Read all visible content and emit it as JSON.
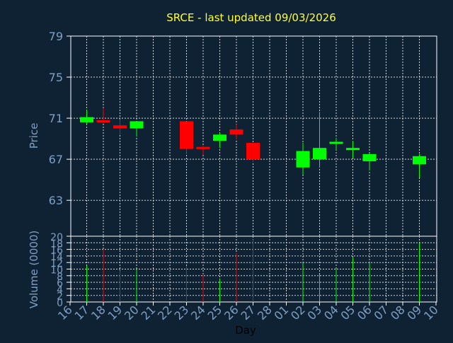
{
  "chart_data": {
    "type": "candlestick",
    "title": "SRCE - last updated 09/03/2026",
    "xlabel": "Day",
    "ylabel_price": "Price",
    "ylabel_volume": "Volume (0000)",
    "x_ticks": [
      "16",
      "17",
      "18",
      "19",
      "20",
      "21",
      "22",
      "23",
      "24",
      "25",
      "26",
      "27",
      "28",
      "01",
      "02",
      "03",
      "04",
      "05",
      "06",
      "07",
      "08",
      "09",
      "10"
    ],
    "price_ylim": [
      59.5,
      79
    ],
    "price_ticks": [
      79,
      75,
      71,
      67,
      63
    ],
    "volume_ylim": [
      0,
      20
    ],
    "volume_ticks": [
      20,
      18,
      16,
      14,
      12,
      10,
      8,
      6,
      4,
      2,
      0
    ],
    "up_color": "#00ff00",
    "down_color": "#ff0000",
    "grid": true,
    "candles": [
      {
        "day": "17",
        "open": 70.6,
        "high": 71.8,
        "low": 70.4,
        "close": 71.1,
        "volume": 11.0
      },
      {
        "day": "18",
        "open": 70.8,
        "high": 72.0,
        "low": 70.5,
        "close": 70.6,
        "volume": 16.0
      },
      {
        "day": "19",
        "open": 70.3,
        "high": 70.9,
        "low": 69.4,
        "close": 70.0,
        "volume": 9.5
      },
      {
        "day": "20",
        "open": 70.0,
        "high": 70.7,
        "low": 69.2,
        "close": 70.7,
        "volume": 10.0
      },
      {
        "day": "23",
        "open": 70.7,
        "high": 70.7,
        "low": 67.6,
        "close": 68.0,
        "volume": 11.0
      },
      {
        "day": "24",
        "open": 68.2,
        "high": 68.3,
        "low": 67.4,
        "close": 68.0,
        "volume": 8.5
      },
      {
        "day": "25",
        "open": 68.8,
        "high": 69.6,
        "low": 68.1,
        "close": 69.4,
        "volume": 7.0
      },
      {
        "day": "26",
        "open": 69.9,
        "high": 70.4,
        "low": 68.9,
        "close": 69.4,
        "volume": 15.0
      },
      {
        "day": "27",
        "open": 68.6,
        "high": 68.6,
        "low": 66.7,
        "close": 67.0,
        "volume": 19.0
      },
      {
        "day": "02",
        "open": 66.2,
        "high": 68.6,
        "low": 65.5,
        "close": 67.8,
        "volume": 12.0
      },
      {
        "day": "03",
        "open": 67.0,
        "high": 71.6,
        "low": 66.2,
        "close": 68.1,
        "volume": 8.5
      },
      {
        "day": "04",
        "open": 68.5,
        "high": 69.1,
        "low": 67.9,
        "close": 68.7,
        "volume": 10.0
      },
      {
        "day": "05",
        "open": 68.0,
        "high": 68.8,
        "low": 67.1,
        "close": 68.1,
        "volume": 13.5
      },
      {
        "day": "06",
        "open": 66.8,
        "high": 67.6,
        "low": 65.9,
        "close": 67.5,
        "volume": 12.0
      },
      {
        "day": "09",
        "open": 66.5,
        "high": 67.5,
        "low": 65.2,
        "close": 67.3,
        "volume": 18.0
      }
    ]
  }
}
